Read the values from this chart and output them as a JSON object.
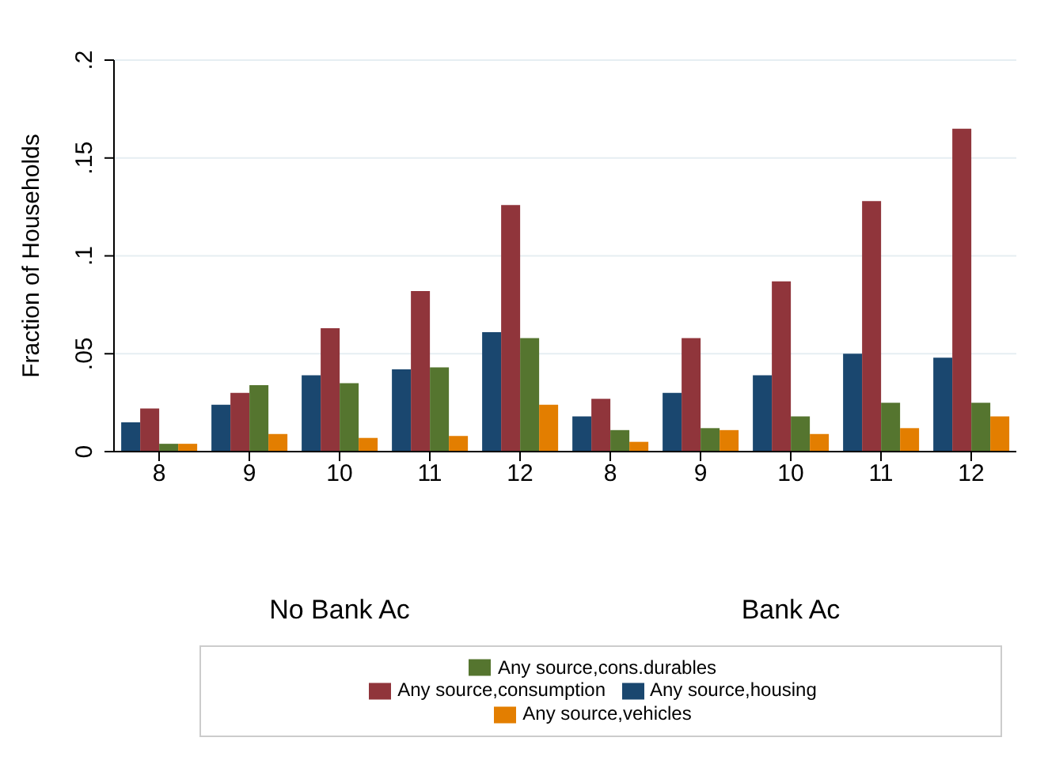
{
  "chart_data": {
    "type": "bar",
    "ylabel": "Fraction of Households",
    "categories": [
      "8",
      "9",
      "10",
      "11",
      "12",
      "8",
      "9",
      "10",
      "11",
      "12"
    ],
    "series": [
      {
        "name": "Any source,housing",
        "color": "#1a476f",
        "values": [
          0.015,
          0.024,
          0.039,
          0.042,
          0.061,
          0.018,
          0.03,
          0.039,
          0.05,
          0.048
        ]
      },
      {
        "name": "Any source,consumption",
        "color": "#90353b",
        "values": [
          0.022,
          0.03,
          0.063,
          0.082,
          0.126,
          0.027,
          0.058,
          0.087,
          0.128,
          0.165
        ]
      },
      {
        "name": "Any source,cons.durables",
        "color": "#55752f",
        "values": [
          0.004,
          0.034,
          0.035,
          0.043,
          0.058,
          0.011,
          0.012,
          0.018,
          0.025,
          0.025
        ]
      },
      {
        "name": "Any source,vehicles",
        "color": "#e37e00",
        "values": [
          0.004,
          0.009,
          0.007,
          0.008,
          0.024,
          0.005,
          0.011,
          0.009,
          0.012,
          0.018
        ]
      }
    ],
    "ylim": [
      0,
      0.2
    ],
    "yticks": [
      {
        "value": 0,
        "label": "0"
      },
      {
        "value": 0.05,
        "label": ".05"
      },
      {
        "value": 0.1,
        "label": ".1"
      },
      {
        "value": 0.15,
        "label": ".15"
      },
      {
        "value": 0.2,
        "label": ".2"
      }
    ],
    "grid": "y",
    "legend": "bottom",
    "annotations": [
      "No Bank Ac",
      "Bank Ac"
    ]
  }
}
